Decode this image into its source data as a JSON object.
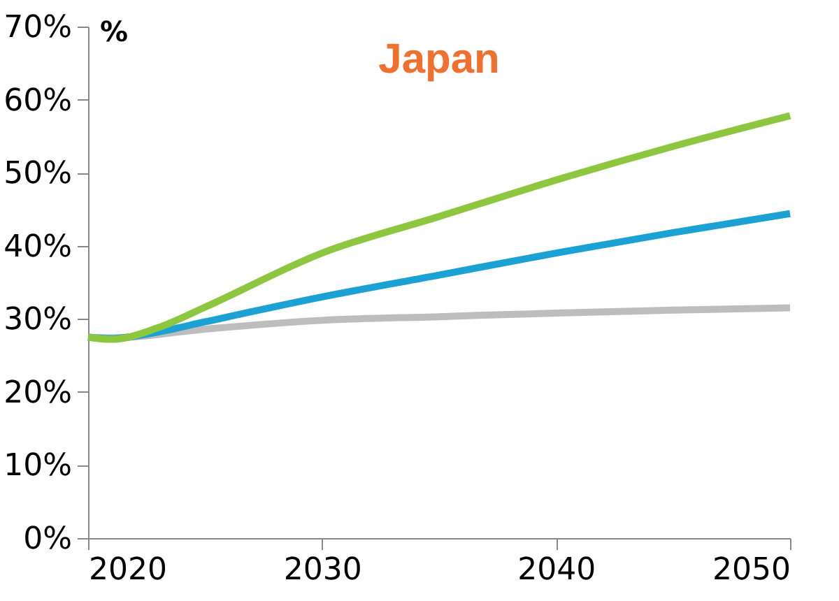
{
  "chart_data": {
    "type": "line",
    "title": "Japan",
    "ylabel": "%",
    "series": [
      {
        "color": "#bdbdbd",
        "x": [
          2020,
          2021,
          2025,
          2030,
          2035,
          2040,
          2045,
          2050
        ],
        "values": [
          27.5,
          27.4,
          28.6,
          29.8,
          30.3,
          30.8,
          31.2,
          31.5
        ]
      },
      {
        "color": "#1ba1d4",
        "x": [
          2020,
          2021,
          2023,
          2025,
          2030,
          2035,
          2040,
          2045,
          2050
        ],
        "values": [
          27.5,
          27.3,
          28.2,
          29.6,
          33.0,
          36.0,
          39.0,
          41.8,
          44.4
        ]
      },
      {
        "color": "#8dc63f",
        "x": [
          2020,
          2021,
          2023,
          2025,
          2030,
          2035,
          2040,
          2045,
          2050
        ],
        "values": [
          27.5,
          27.2,
          28.8,
          31.6,
          39.0,
          44.0,
          49.0,
          53.6,
          57.8
        ]
      }
    ],
    "xlim": [
      2020,
      2050
    ],
    "xticks": [
      2020,
      2030,
      2040,
      2050
    ],
    "ylim": [
      0,
      70
    ],
    "yticks": [
      {
        "value": 0,
        "label": "0%"
      },
      {
        "value": 10,
        "label": "10%"
      },
      {
        "value": 20,
        "label": "20%"
      },
      {
        "value": 30,
        "label": "30%"
      },
      {
        "value": 40,
        "label": "40%"
      },
      {
        "value": 50,
        "label": "50%"
      },
      {
        "value": 60,
        "label": "60%"
      },
      {
        "value": 70,
        "label": "70%"
      }
    ],
    "grid": false,
    "legend": false,
    "marker": "none",
    "line_style": "solid"
  }
}
